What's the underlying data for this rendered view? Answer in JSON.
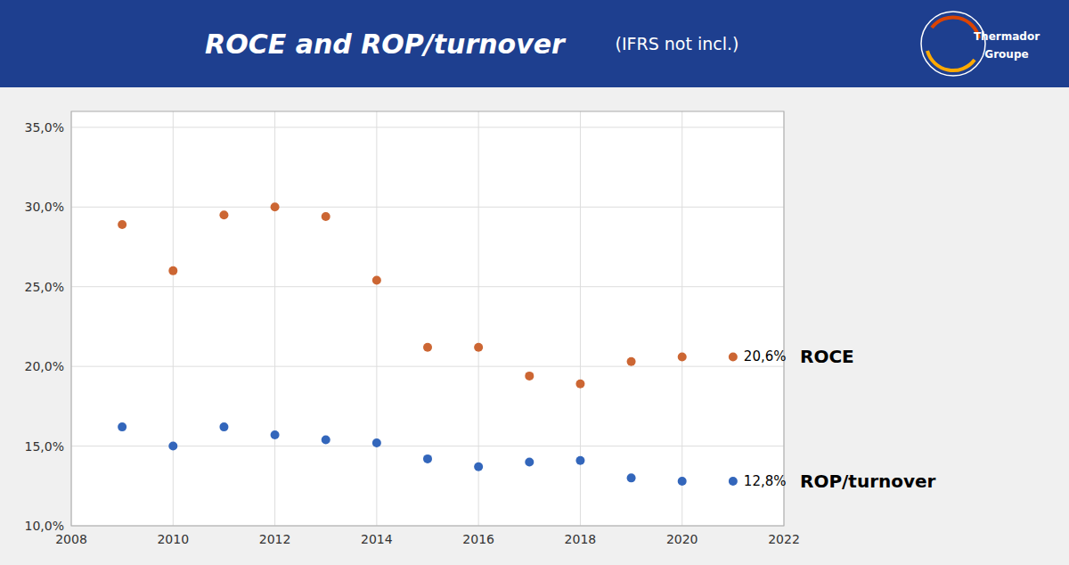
{
  "chart_data": {
    "type": "scatter",
    "title": "ROCE and ROP/turnover",
    "subtitle": "(IFRS not incl.)",
    "annotations": [
      "Thermador",
      "Groupe"
    ],
    "x": [
      2009,
      2010,
      2011,
      2012,
      2013,
      2014,
      2015,
      2016,
      2017,
      2018,
      2019,
      2020,
      2021
    ],
    "series": [
      {
        "name": "ROCE",
        "color": "#cc6633",
        "values": [
          28.9,
          26.0,
          29.5,
          30.0,
          29.4,
          25.4,
          21.2,
          21.2,
          19.4,
          18.9,
          20.3,
          20.6,
          20.6
        ],
        "value_labels": [
          null,
          null,
          null,
          null,
          null,
          null,
          null,
          null,
          null,
          null,
          null,
          null,
          "20,6%"
        ]
      },
      {
        "name": "ROP/turnover",
        "color": "#3366bb",
        "values": [
          16.2,
          15.0,
          16.2,
          15.7,
          15.4,
          15.2,
          14.2,
          13.7,
          14.0,
          14.1,
          13.0,
          12.8,
          12.8
        ],
        "value_labels": [
          null,
          null,
          null,
          null,
          null,
          null,
          null,
          null,
          null,
          null,
          null,
          null,
          "12,8%"
        ]
      }
    ],
    "xlim": [
      2008,
      2022
    ],
    "xticks": [
      2008,
      2010,
      2012,
      2014,
      2016,
      2018,
      2020,
      2022
    ],
    "ylim": [
      10.0,
      36.0
    ],
    "yticks": [
      {
        "value": 10.0,
        "label": "10,0%"
      },
      {
        "value": 15.0,
        "label": "15,0%"
      },
      {
        "value": 20.0,
        "label": "20,0%"
      },
      {
        "value": 25.0,
        "label": "25,0%"
      },
      {
        "value": 30.0,
        "label": "30,0%"
      },
      {
        "value": 35.0,
        "label": "35,0%"
      }
    ],
    "grid": true
  }
}
